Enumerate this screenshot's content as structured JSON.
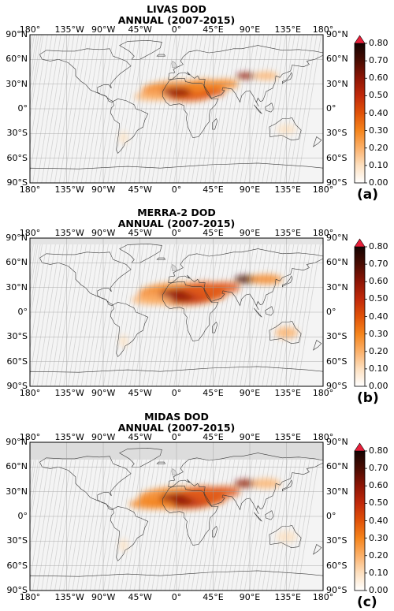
{
  "panels": [
    {
      "id": "a",
      "title_line1": "LIVAS DOD",
      "title_line2": "ANNUAL   (2007-2015)",
      "letter": "(a)"
    },
    {
      "id": "b",
      "title_line1": "MERRA-2 DOD",
      "title_line2": "ANNUAL   (2007-2015)",
      "letter": "(b)"
    },
    {
      "id": "c",
      "title_line1": "MIDAS DOD",
      "title_line2": "ANNUAL   (2007-2015)",
      "letter": "(c)"
    }
  ],
  "lon_ticks": [
    "180°",
    "135°W",
    "90°W",
    "45°W",
    "0°",
    "45°E",
    "90°E",
    "135°E",
    "180°"
  ],
  "lat_ticks": [
    "90°N",
    "60°N",
    "30°N",
    "0°",
    "30°S",
    "60°S",
    "90°S"
  ],
  "colorbar": {
    "labels": [
      "0.80",
      "0.70",
      "0.60",
      "0.50",
      "0.40",
      "0.30",
      "0.20",
      "0.10",
      "0.00"
    ],
    "min": 0.0,
    "max": 0.8,
    "extend": "max",
    "extend_color": "#e8203a",
    "colors": [
      "#ffffff",
      "#fde0c0",
      "#fbb06a",
      "#f5841c",
      "#e05208",
      "#c1290a",
      "#8e1505",
      "#4a0c02",
      "#150302"
    ]
  },
  "map_colors": {
    "background_gray": "#dcdcdc",
    "ocean": "#f3f3f3",
    "land_outline": "#333333"
  }
}
